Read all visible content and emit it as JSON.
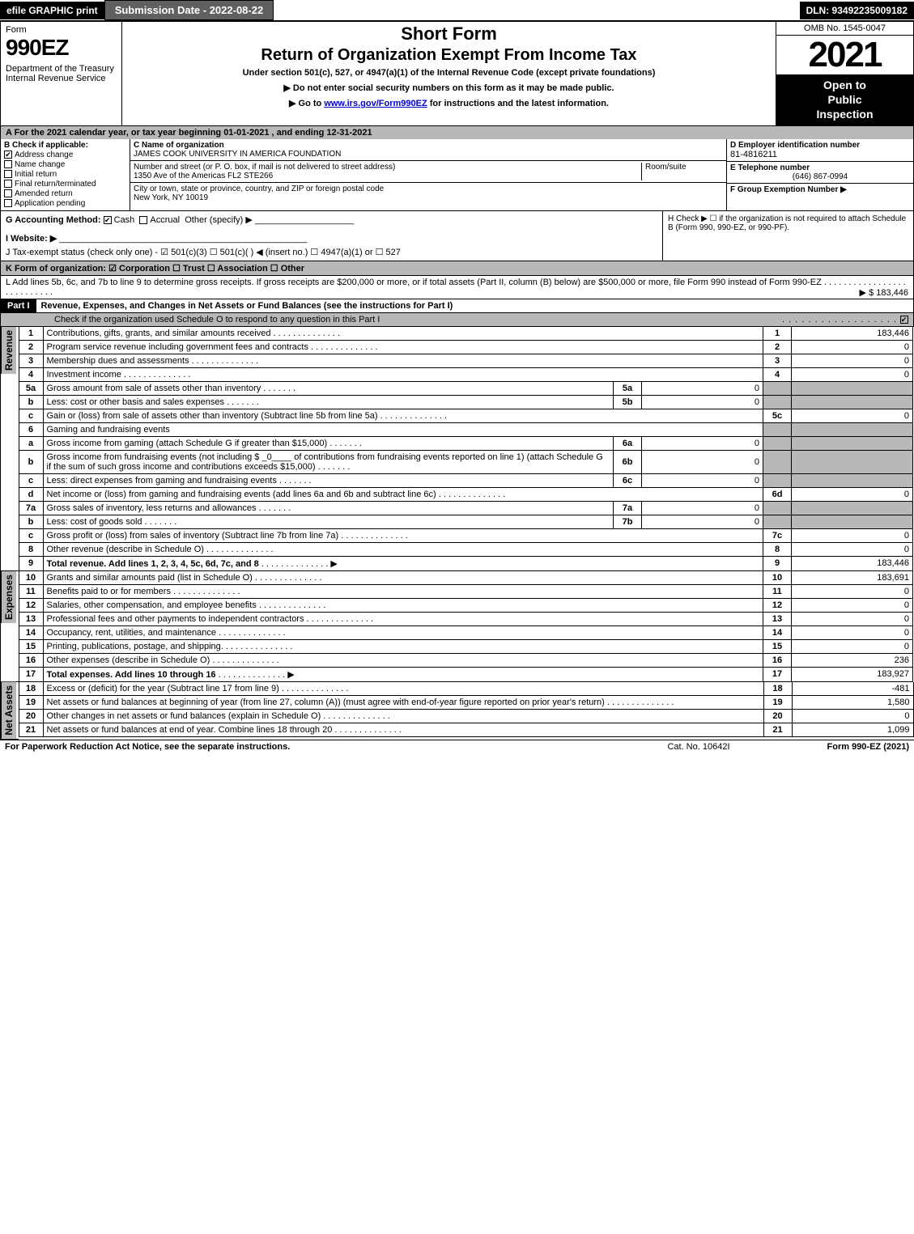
{
  "topbar": {
    "efile": "efile GRAPHIC print",
    "submission": "Submission Date - 2022-08-22",
    "dln": "DLN: 93492235009182"
  },
  "header": {
    "form_label": "Form",
    "form_num": "990EZ",
    "dept": "Department of the Treasury\nInternal Revenue Service",
    "short_form": "Short Form",
    "title": "Return of Organization Exempt From Income Tax",
    "subtitle": "Under section 501(c), 527, or 4947(a)(1) of the Internal Revenue Code (except private foundations)",
    "instr1": "▶ Do not enter social security numbers on this form as it may be made public.",
    "instr2_pre": "▶ Go to ",
    "instr2_link": "www.irs.gov/Form990EZ",
    "instr2_post": " for instructions and the latest information.",
    "omb": "OMB No. 1545-0047",
    "year": "2021",
    "open1": "Open to",
    "open2": "Public",
    "open3": "Inspection"
  },
  "section_a": "A  For the 2021 calendar year, or tax year beginning 01-01-2021 , and ending 12-31-2021",
  "col_b": {
    "label": "B  Check if applicable:",
    "items": [
      {
        "label": "Address change",
        "checked": true
      },
      {
        "label": "Name change",
        "checked": false
      },
      {
        "label": "Initial return",
        "checked": false
      },
      {
        "label": "Final return/terminated",
        "checked": false
      },
      {
        "label": "Amended return",
        "checked": false
      },
      {
        "label": "Application pending",
        "checked": false
      }
    ]
  },
  "col_c": {
    "name_label": "C Name of organization",
    "name": "JAMES COOK UNIVERSITY IN AMERICA FOUNDATION",
    "street_label": "Number and street (or P. O. box, if mail is not delivered to street address)",
    "street": "1350 Ave of the Americas FL2 STE266",
    "room_label": "Room/suite",
    "city_label": "City or town, state or province, country, and ZIP or foreign postal code",
    "city": "New York, NY  10019"
  },
  "col_def": {
    "d_label": "D Employer identification number",
    "ein": "81-4816211",
    "e_label": "E Telephone number",
    "phone": "(646) 867-0994",
    "f_label": "F Group Exemption Number  ▶"
  },
  "g_line": {
    "label": "G Accounting Method:",
    "cash": "Cash",
    "accrual": "Accrual",
    "other": "Other (specify) ▶"
  },
  "h_line": "H  Check ▶  ☐  if the organization is not required to attach Schedule B (Form 990, 990-EZ, or 990-PF).",
  "i_line": "I Website: ▶",
  "j_line": "J Tax-exempt status (check only one) -  ☑ 501(c)(3)  ☐ 501(c)(  ) ◀ (insert no.)  ☐ 4947(a)(1) or  ☐ 527",
  "k_line": "K Form of organization:   ☑ Corporation   ☐ Trust   ☐ Association   ☐ Other",
  "l_line": {
    "text": "L Add lines 5b, 6c, and 7b to line 9 to determine gross receipts. If gross receipts are $200,000 or more, or if total assets (Part II, column (B) below) are $500,000 or more, file Form 990 instead of Form 990-EZ",
    "value": "▶ $ 183,446"
  },
  "part1": {
    "label": "Part I",
    "title": "Revenue, Expenses, and Changes in Net Assets or Fund Balances (see the instructions for Part I)",
    "check_line": "Check if the organization used Schedule O to respond to any question in this Part I"
  },
  "side_labels": {
    "revenue": "Revenue",
    "expenses": "Expenses",
    "netassets": "Net Assets"
  },
  "revenue_rows": [
    {
      "num": "1",
      "desc": "Contributions, gifts, grants, and similar amounts received",
      "line": "1",
      "val": "183,446"
    },
    {
      "num": "2",
      "desc": "Program service revenue including government fees and contracts",
      "line": "2",
      "val": "0"
    },
    {
      "num": "3",
      "desc": "Membership dues and assessments",
      "line": "3",
      "val": "0"
    },
    {
      "num": "4",
      "desc": "Investment income",
      "line": "4",
      "val": "0"
    },
    {
      "num": "5a",
      "desc": "Gross amount from sale of assets other than inventory",
      "sub": "5a",
      "subval": "0"
    },
    {
      "num": "b",
      "desc": "Less: cost or other basis and sales expenses",
      "sub": "5b",
      "subval": "0"
    },
    {
      "num": "c",
      "desc": "Gain or (loss) from sale of assets other than inventory (Subtract line 5b from line 5a)",
      "line": "5c",
      "val": "0"
    },
    {
      "num": "6",
      "desc": "Gaming and fundraising events"
    },
    {
      "num": "a",
      "desc": "Gross income from gaming (attach Schedule G if greater than $15,000)",
      "sub": "6a",
      "subval": "0"
    },
    {
      "num": "b",
      "desc": "Gross income from fundraising events (not including $ _0____ of contributions from fundraising events reported on line 1) (attach Schedule G if the sum of such gross income and contributions exceeds $15,000)",
      "sub": "6b",
      "subval": "0"
    },
    {
      "num": "c",
      "desc": "Less: direct expenses from gaming and fundraising events",
      "sub": "6c",
      "subval": "0"
    },
    {
      "num": "d",
      "desc": "Net income or (loss) from gaming and fundraising events (add lines 6a and 6b and subtract line 6c)",
      "line": "6d",
      "val": "0"
    },
    {
      "num": "7a",
      "desc": "Gross sales of inventory, less returns and allowances",
      "sub": "7a",
      "subval": "0"
    },
    {
      "num": "b",
      "desc": "Less: cost of goods sold",
      "sub": "7b",
      "subval": "0"
    },
    {
      "num": "c",
      "desc": "Gross profit or (loss) from sales of inventory (Subtract line 7b from line 7a)",
      "line": "7c",
      "val": "0"
    },
    {
      "num": "8",
      "desc": "Other revenue (describe in Schedule O)",
      "line": "8",
      "val": "0"
    },
    {
      "num": "9",
      "desc": "Total revenue. Add lines 1, 2, 3, 4, 5c, 6d, 7c, and 8",
      "line": "9",
      "val": "183,446",
      "bold": true,
      "arrow": true
    }
  ],
  "expense_rows": [
    {
      "num": "10",
      "desc": "Grants and similar amounts paid (list in Schedule O)",
      "line": "10",
      "val": "183,691"
    },
    {
      "num": "11",
      "desc": "Benefits paid to or for members",
      "line": "11",
      "val": "0"
    },
    {
      "num": "12",
      "desc": "Salaries, other compensation, and employee benefits",
      "line": "12",
      "val": "0"
    },
    {
      "num": "13",
      "desc": "Professional fees and other payments to independent contractors",
      "line": "13",
      "val": "0"
    },
    {
      "num": "14",
      "desc": "Occupancy, rent, utilities, and maintenance",
      "line": "14",
      "val": "0"
    },
    {
      "num": "15",
      "desc": "Printing, publications, postage, and shipping.",
      "line": "15",
      "val": "0"
    },
    {
      "num": "16",
      "desc": "Other expenses (describe in Schedule O)",
      "line": "16",
      "val": "236"
    },
    {
      "num": "17",
      "desc": "Total expenses. Add lines 10 through 16",
      "line": "17",
      "val": "183,927",
      "bold": true,
      "arrow": true
    }
  ],
  "netasset_rows": [
    {
      "num": "18",
      "desc": "Excess or (deficit) for the year (Subtract line 17 from line 9)",
      "line": "18",
      "val": "-481"
    },
    {
      "num": "19",
      "desc": "Net assets or fund balances at beginning of year (from line 27, column (A)) (must agree with end-of-year figure reported on prior year's return)",
      "line": "19",
      "val": "1,580"
    },
    {
      "num": "20",
      "desc": "Other changes in net assets or fund balances (explain in Schedule O)",
      "line": "20",
      "val": "0"
    },
    {
      "num": "21",
      "desc": "Net assets or fund balances at end of year. Combine lines 18 through 20",
      "line": "21",
      "val": "1,099"
    }
  ],
  "footer": {
    "left": "For Paperwork Reduction Act Notice, see the separate instructions.",
    "mid": "Cat. No. 10642I",
    "right": "Form 990-EZ (2021)"
  },
  "colors": {
    "black": "#000000",
    "gray": "#b8b8b8",
    "darkgray": "#606060",
    "link": "#0000cc"
  }
}
